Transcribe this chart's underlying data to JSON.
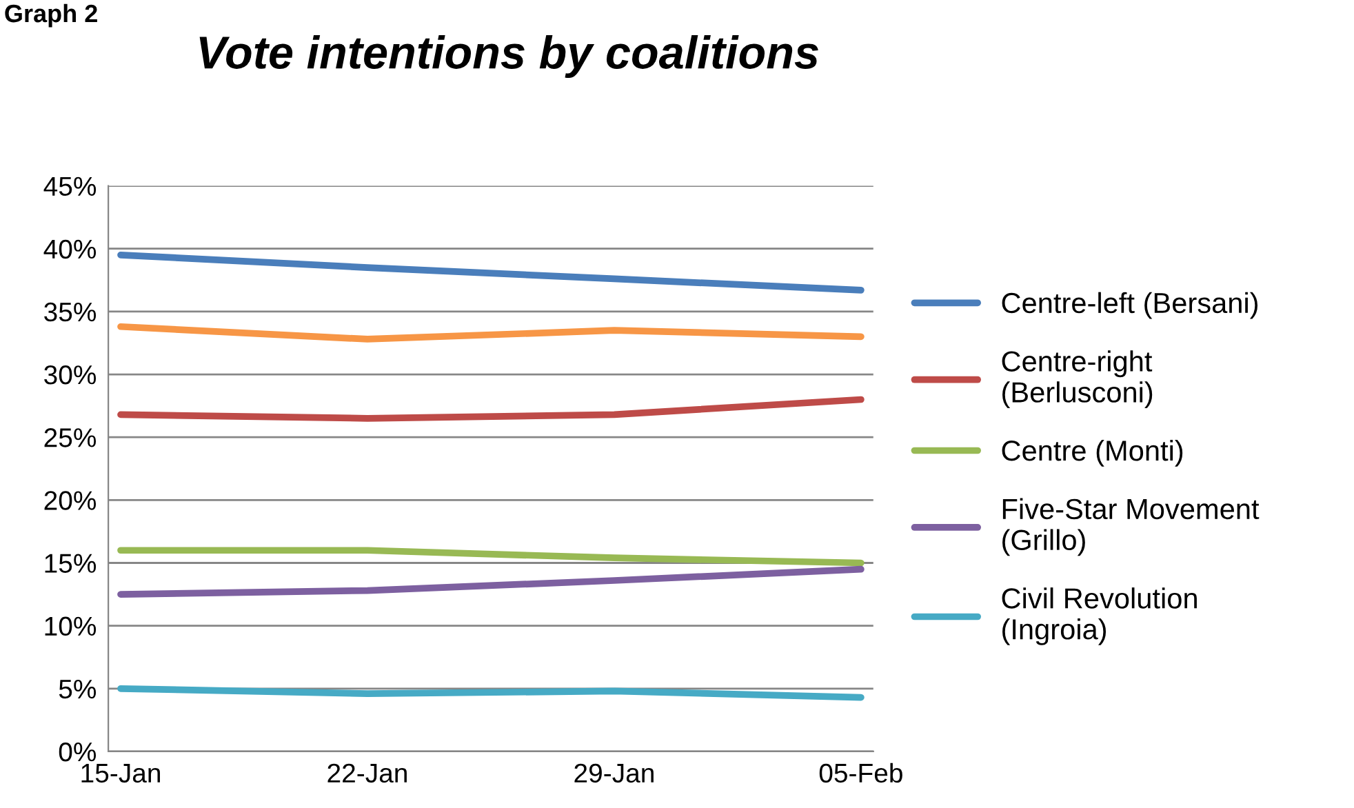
{
  "chart_data": {
    "type": "line",
    "title": "Vote intentions by coalitions",
    "annotations": [
      "Graph 2"
    ],
    "categories": [
      "15-Jan",
      "22-Jan",
      "29-Jan",
      "05-Feb"
    ],
    "series": [
      {
        "name": "Centre-left (Bersani)",
        "color": "#4a7ebb",
        "values": [
          39.5,
          38.5,
          37.6,
          36.7
        ]
      },
      {
        "color": "#f79646",
        "values": [
          33.8,
          32.8,
          33.5,
          33.0
        ]
      },
      {
        "name": "Centre-right\n(Berlusconi)",
        "color": "#be4b48",
        "values": [
          26.8,
          26.5,
          26.8,
          28.0
        ]
      },
      {
        "name": "Centre (Monti)",
        "color": "#98b954",
        "values": [
          16.0,
          16.0,
          15.4,
          15.0
        ]
      },
      {
        "name": "Five-Star Movement\n(Grillo)",
        "color": "#7d60a0",
        "values": [
          12.5,
          12.8,
          13.6,
          14.5
        ]
      },
      {
        "name": "Civil Revolution\n(Ingroia)",
        "color": "#46aac5",
        "values": [
          5.0,
          4.6,
          4.8,
          4.3
        ]
      }
    ],
    "ylim": [
      0,
      45
    ],
    "yticks": [
      {
        "value": 0,
        "label": "0%"
      },
      {
        "value": 5,
        "label": "5%"
      },
      {
        "value": 10,
        "label": "10%"
      },
      {
        "value": 15,
        "label": "15%"
      },
      {
        "value": 20,
        "label": "20%"
      },
      {
        "value": 25,
        "label": "25%"
      },
      {
        "value": 30,
        "label": "30%"
      },
      {
        "value": 35,
        "label": "35%"
      },
      {
        "value": 40,
        "label": "40%"
      },
      {
        "value": 45,
        "label": "45%"
      }
    ],
    "grid": "y",
    "legend": "right",
    "line_style": "solid"
  }
}
